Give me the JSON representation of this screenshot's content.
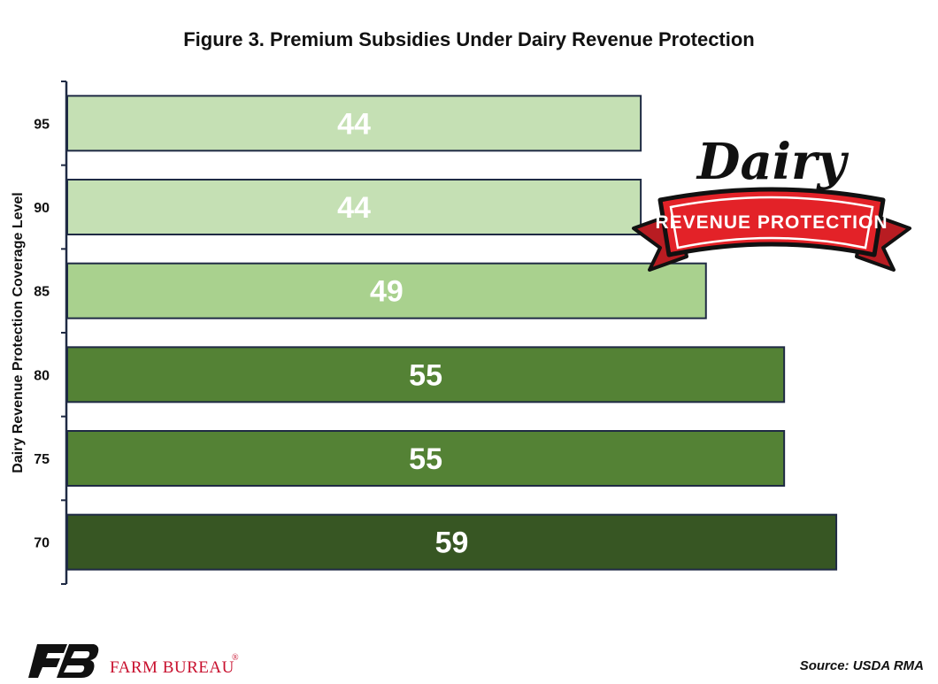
{
  "title": "Figure 3. Premium Subsidies Under Dairy Revenue Protection",
  "source": "Source: USDA RMA",
  "logo": {
    "name": "FARM BUREAU",
    "mark": "®"
  },
  "badge": {
    "word": "Dairy",
    "ribbon": "REVENUE PROTECTION"
  },
  "colors": {
    "light": "#c5e0b4",
    "medium": "#a9d18e",
    "dark": "#548235",
    "darkest": "#375623",
    "outline": "#1f2a44",
    "brand_red": "#c8102e",
    "ribbon_red": "#e32228"
  },
  "chart_data": {
    "type": "bar",
    "orientation": "horizontal",
    "ylabel": "Dairy Revenue Protection Coverage Level",
    "xlabel": "",
    "categories": [
      "95",
      "90",
      "85",
      "80",
      "75",
      "70"
    ],
    "values": [
      44,
      44,
      49,
      55,
      55,
      59
    ],
    "bar_colors": [
      "#c5e0b4",
      "#c5e0b4",
      "#a9d18e",
      "#548235",
      "#548235",
      "#375623"
    ],
    "data_labels": true,
    "grid": false,
    "legend": "none"
  }
}
